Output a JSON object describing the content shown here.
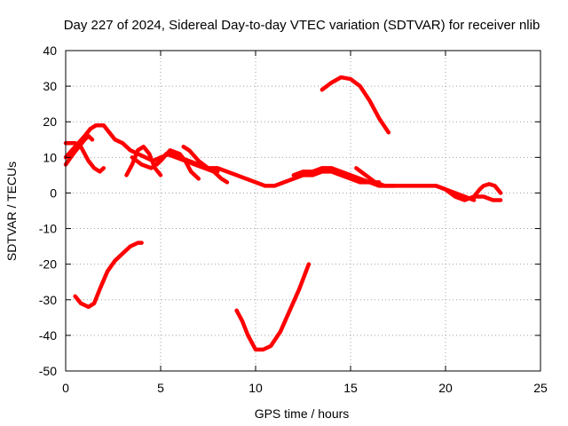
{
  "chart_data": {
    "type": "scatter",
    "title": "Day 227 of 2024, Sidereal Day-to-day VTEC variation (SDTVAR) for receiver nlib",
    "xlabel": "GPS time / hours",
    "ylabel": "SDTVAR / TECUs",
    "xlim": [
      0,
      25
    ],
    "ylim": [
      -50,
      40
    ],
    "xticks": [
      "0",
      "5",
      "10",
      "15",
      "20",
      "25"
    ],
    "yticks": [
      "-50",
      "-40",
      "-30",
      "-20",
      "-10",
      "0",
      "10",
      "20",
      "30",
      "40"
    ],
    "grid": true,
    "color": "#ff0000",
    "series": [
      {
        "name": "s1",
        "points": [
          [
            0,
            10
          ],
          [
            0.5,
            13
          ],
          [
            1,
            16
          ],
          [
            1.3,
            18
          ],
          [
            1.6,
            19
          ],
          [
            2,
            19
          ],
          [
            2.3,
            17
          ],
          [
            2.6,
            15
          ],
          [
            3,
            14
          ],
          [
            3.4,
            12
          ],
          [
            3.8,
            11
          ],
          [
            4.2,
            10
          ],
          [
            4.6,
            9
          ],
          [
            5,
            10
          ],
          [
            5.5,
            11
          ],
          [
            6,
            10
          ],
          [
            6.5,
            9
          ],
          [
            7,
            8
          ],
          [
            7.5,
            7
          ],
          [
            8,
            7
          ],
          [
            8.5,
            6
          ],
          [
            9,
            5
          ],
          [
            9.5,
            4
          ],
          [
            10,
            3
          ],
          [
            10.5,
            2
          ],
          [
            11,
            2
          ]
        ]
      },
      {
        "name": "s2",
        "points": [
          [
            0,
            14
          ],
          [
            0.5,
            14
          ],
          [
            0.8,
            13
          ],
          [
            1,
            11
          ],
          [
            1.2,
            9
          ],
          [
            1.5,
            7
          ],
          [
            1.8,
            6
          ],
          [
            2,
            7
          ]
        ]
      },
      {
        "name": "s3",
        "points": [
          [
            0,
            8
          ],
          [
            0.4,
            11
          ],
          [
            0.7,
            13
          ],
          [
            1,
            15
          ],
          [
            1.2,
            16
          ],
          [
            1.4,
            15
          ]
        ]
      },
      {
        "name": "s4",
        "points": [
          [
            0.5,
            -29
          ],
          [
            0.8,
            -31
          ],
          [
            1.2,
            -32
          ],
          [
            1.5,
            -31
          ],
          [
            1.8,
            -27
          ],
          [
            2.2,
            -22
          ],
          [
            2.6,
            -19
          ],
          [
            3,
            -17
          ],
          [
            3.4,
            -15
          ],
          [
            3.8,
            -14
          ],
          [
            4,
            -14
          ]
        ]
      },
      {
        "name": "s5",
        "points": [
          [
            3.2,
            5
          ],
          [
            3.5,
            8
          ],
          [
            3.8,
            12
          ],
          [
            4.1,
            13
          ],
          [
            4.4,
            11
          ],
          [
            4.7,
            7
          ],
          [
            5,
            5
          ]
        ]
      },
      {
        "name": "s6",
        "points": [
          [
            3.5,
            10
          ],
          [
            4,
            8
          ],
          [
            4.5,
            7
          ],
          [
            5,
            9
          ],
          [
            5.5,
            12
          ],
          [
            6,
            11
          ],
          [
            6.3,
            9
          ],
          [
            6.6,
            6
          ],
          [
            7,
            4
          ]
        ]
      },
      {
        "name": "s7",
        "points": [
          [
            4.8,
            8
          ],
          [
            5.3,
            11
          ],
          [
            5.8,
            10
          ],
          [
            6.3,
            9
          ],
          [
            6.8,
            8
          ],
          [
            7.3,
            7
          ],
          [
            7.8,
            6
          ],
          [
            8.2,
            4
          ],
          [
            8.5,
            3
          ]
        ]
      },
      {
        "name": "s8",
        "points": [
          [
            6.2,
            13
          ],
          [
            6.5,
            12
          ],
          [
            7,
            9
          ],
          [
            7.5,
            7
          ],
          [
            8,
            6
          ]
        ]
      },
      {
        "name": "s9",
        "points": [
          [
            9,
            -33
          ],
          [
            9.3,
            -36
          ],
          [
            9.6,
            -40
          ],
          [
            10,
            -44
          ],
          [
            10.4,
            -44
          ],
          [
            10.8,
            -43
          ],
          [
            11.3,
            -39
          ],
          [
            11.8,
            -33
          ],
          [
            12.3,
            -27
          ],
          [
            12.8,
            -20
          ]
        ]
      },
      {
        "name": "s10",
        "points": [
          [
            11,
            2
          ],
          [
            11.5,
            3
          ],
          [
            12,
            4
          ],
          [
            12.5,
            5
          ],
          [
            13,
            5
          ],
          [
            13.5,
            6
          ],
          [
            14,
            6
          ],
          [
            14.5,
            5
          ],
          [
            15,
            4
          ],
          [
            15.5,
            3
          ],
          [
            16,
            3
          ],
          [
            16.5,
            2
          ],
          [
            17,
            2
          ],
          [
            17.5,
            2
          ],
          [
            18,
            2
          ],
          [
            18.5,
            2
          ],
          [
            19,
            2
          ],
          [
            19.5,
            2
          ],
          [
            20,
            1
          ],
          [
            20.5,
            -1
          ],
          [
            21,
            -2
          ],
          [
            21.5,
            -1
          ],
          [
            22,
            -1
          ],
          [
            22.5,
            -2
          ],
          [
            22.9,
            -2
          ]
        ]
      },
      {
        "name": "s11",
        "points": [
          [
            12,
            5
          ],
          [
            12.5,
            6
          ],
          [
            13,
            6
          ],
          [
            13.5,
            7
          ],
          [
            14,
            7
          ],
          [
            14.5,
            6
          ],
          [
            15,
            5
          ],
          [
            15.5,
            4
          ],
          [
            16,
            3
          ],
          [
            16.5,
            3
          ]
        ]
      },
      {
        "name": "s12",
        "points": [
          [
            15.3,
            7
          ],
          [
            15.8,
            5
          ],
          [
            16.3,
            3
          ],
          [
            16.8,
            2
          ],
          [
            17.3,
            2
          ]
        ]
      },
      {
        "name": "s13",
        "points": [
          [
            13.5,
            29
          ],
          [
            14,
            31
          ],
          [
            14.5,
            32.5
          ],
          [
            15,
            32
          ],
          [
            15.5,
            30
          ],
          [
            16,
            26
          ],
          [
            16.5,
            21
          ],
          [
            17,
            17
          ]
        ]
      },
      {
        "name": "s14",
        "points": [
          [
            19.5,
            2
          ],
          [
            20,
            1
          ],
          [
            20.5,
            0
          ],
          [
            21,
            -1
          ],
          [
            21.5,
            -2
          ]
        ]
      },
      {
        "name": "s15",
        "points": [
          [
            21.5,
            -1
          ],
          [
            21.8,
            1
          ],
          [
            22,
            2
          ],
          [
            22.3,
            2.5
          ],
          [
            22.6,
            2
          ],
          [
            22.9,
            0
          ]
        ]
      }
    ]
  }
}
